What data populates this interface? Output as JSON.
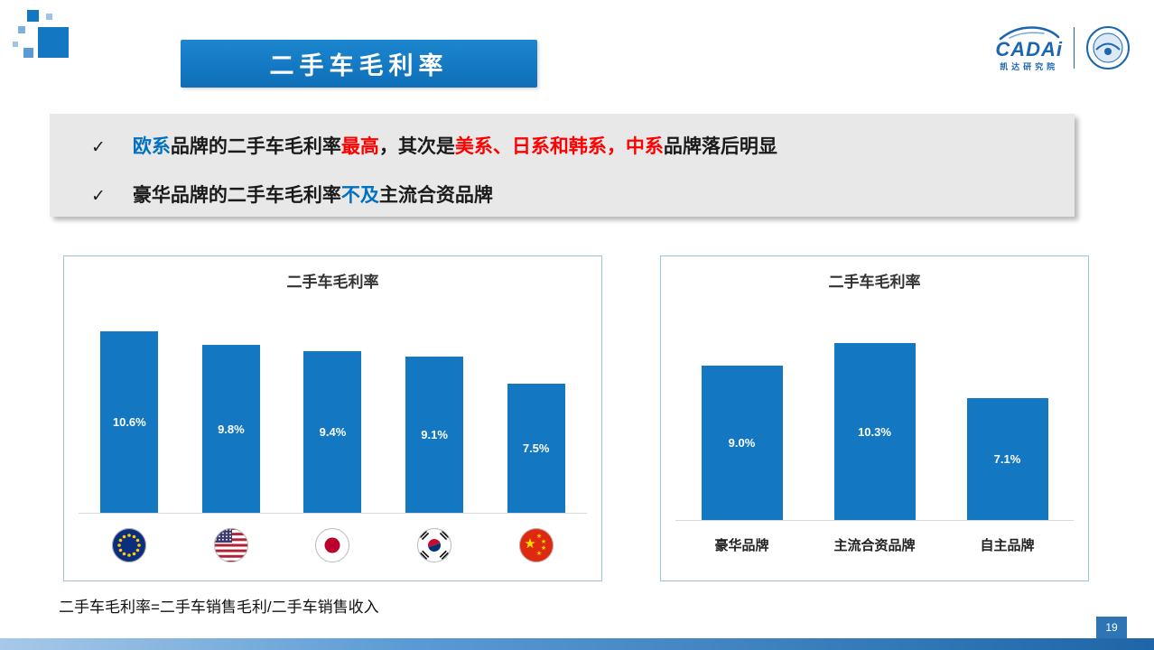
{
  "slide": {
    "title": "二手车毛利率",
    "page_number": "19",
    "footer_note": "二手车毛利率=二手车销售毛利/二手车销售收入",
    "check_icon": "✓"
  },
  "logos": {
    "cadai_name": "CADAi",
    "cadai_subtitle": "凯达研究院"
  },
  "colors": {
    "blue": "#0070C0",
    "red": "#FF0000",
    "black": "#1A1A1A",
    "accent": "#1377C2"
  },
  "bullets": [
    {
      "segments": [
        {
          "text": "欧系",
          "color": "blue"
        },
        {
          "text": "品牌的二手车毛利率",
          "color": "black"
        },
        {
          "text": "最高",
          "color": "red"
        },
        {
          "text": "，其次是",
          "color": "black"
        },
        {
          "text": "美系、日系和韩系，中系",
          "color": "red"
        },
        {
          "text": "品牌落后明显",
          "color": "black"
        }
      ]
    },
    {
      "segments": [
        {
          "text": "豪华品牌的二手车毛利率",
          "color": "black"
        },
        {
          "text": "不及",
          "color": "blue"
        },
        {
          "text": "主流合资品牌",
          "color": "black"
        }
      ]
    }
  ],
  "chart_data": [
    {
      "type": "bar",
      "title": "二手车毛利率",
      "categories": [
        "欧系",
        "美系",
        "日系",
        "韩系",
        "中系"
      ],
      "values": [
        10.6,
        9.8,
        9.4,
        9.1,
        7.5
      ],
      "value_labels": [
        "10.6%",
        "9.8%",
        "9.4%",
        "9.1%",
        "7.5%"
      ],
      "category_icons": [
        "eu-flag",
        "usa-flag",
        "japan-flag",
        "korea-flag",
        "china-flag"
      ],
      "bar_color": "#1377C2",
      "ylim": [
        0,
        12
      ],
      "grid": false,
      "legend": false,
      "value_label_position": "inside-center",
      "value_label_color": "#FFFFFF"
    },
    {
      "type": "bar",
      "title": "二手车毛利率",
      "categories": [
        "豪华品牌",
        "主流合资品牌",
        "自主品牌"
      ],
      "values": [
        9.0,
        10.3,
        7.1
      ],
      "value_labels": [
        "9.0%",
        "10.3%",
        "7.1%"
      ],
      "bar_color": "#1377C2",
      "ylim": [
        0,
        12
      ],
      "grid": false,
      "legend": false,
      "value_label_position": "inside-center",
      "value_label_color": "#FFFFFF"
    }
  ]
}
